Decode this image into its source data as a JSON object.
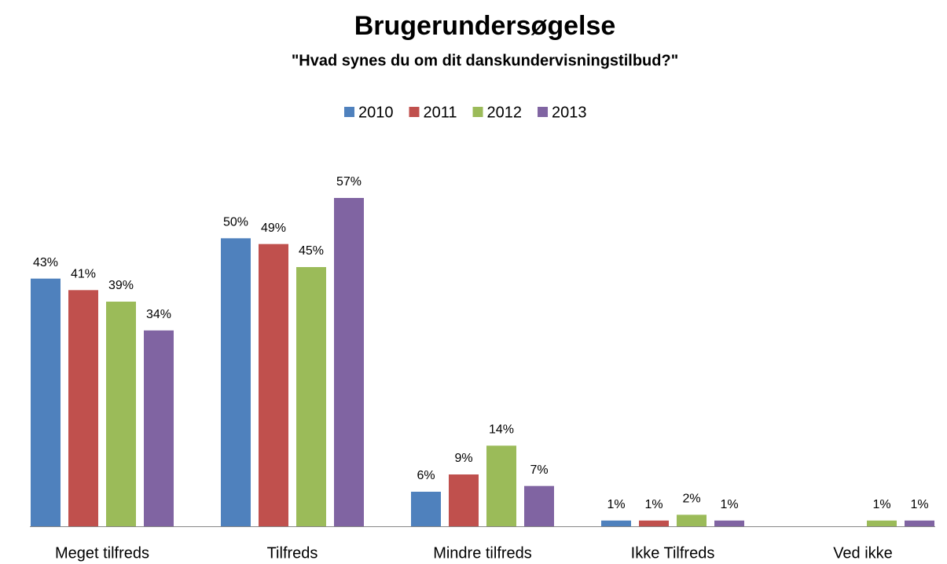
{
  "chart_data": {
    "type": "bar",
    "title": "Brugerundersøgelse",
    "subtitle": "\"Hvad synes du om dit danskundervisningstilbud?\"",
    "categories": [
      "Meget tilfreds",
      "Tilfreds",
      "Mindre tilfreds",
      "Ikke Tilfreds",
      "Ved ikke"
    ],
    "series": [
      {
        "name": "2010",
        "color": "#4f81bd",
        "values": [
          43,
          50,
          6,
          1,
          null
        ],
        "value_labels": [
          "43%",
          "50%",
          "6%",
          "1%",
          null
        ]
      },
      {
        "name": "2011",
        "color": "#c0504d",
        "values": [
          41,
          49,
          9,
          1,
          null
        ],
        "value_labels": [
          "41%",
          "49%",
          "9%",
          "1%",
          null
        ]
      },
      {
        "name": "2012",
        "color": "#9bbb59",
        "values": [
          39,
          45,
          14,
          2,
          1
        ],
        "value_labels": [
          "39%",
          "45%",
          "14%",
          "2%",
          "1%"
        ]
      },
      {
        "name": "2013",
        "color": "#8064a2",
        "values": [
          34,
          57,
          7,
          1,
          1
        ],
        "value_labels": [
          "34%",
          "57%",
          "7%",
          "1%",
          "1%"
        ]
      }
    ],
    "ylim": [
      0,
      60
    ],
    "legend": "top"
  }
}
